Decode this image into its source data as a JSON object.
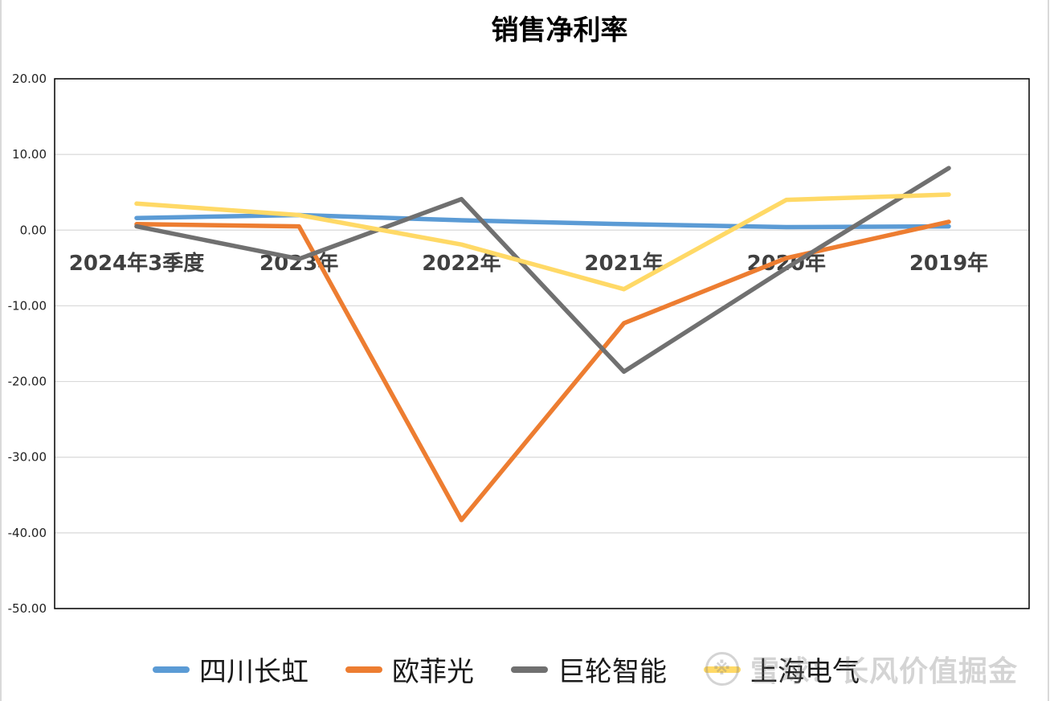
{
  "chart_data": {
    "type": "line",
    "title": "销售净利率",
    "categories": [
      "2024年3季度",
      "2023年",
      "2022年",
      "2021年",
      "2020年",
      "2019年"
    ],
    "ylim": [
      -50,
      20
    ],
    "yticks": [
      "20.00",
      "10.00",
      "0.00",
      "-10.00",
      "-20.00",
      "-30.00",
      "-40.00",
      "-50.00"
    ],
    "ytick_values": [
      20,
      10,
      0,
      -10,
      -20,
      -30,
      -40,
      -50
    ],
    "grid": true,
    "legend_position": "bottom",
    "series": [
      {
        "name": "四川长虹",
        "color": "#5b9bd5",
        "values": [
          1.6,
          2.0,
          1.3,
          0.8,
          0.4,
          0.5
        ]
      },
      {
        "name": "欧菲光",
        "color": "#ed7d31",
        "values": [
          0.8,
          0.5,
          -38.3,
          -12.3,
          -3.7,
          1.1
        ]
      },
      {
        "name": "巨轮智能",
        "color": "#707070",
        "values": [
          0.5,
          -3.8,
          4.1,
          -18.7,
          -5.0,
          8.2
        ]
      },
      {
        "name": "上海电气",
        "color": "#ffd966",
        "values": [
          3.5,
          2.0,
          -1.9,
          -7.8,
          4.0,
          4.7
        ]
      }
    ]
  },
  "watermark": {
    "icon": "snowball-logo-icon",
    "text": "雪球：长风价值掘金"
  }
}
